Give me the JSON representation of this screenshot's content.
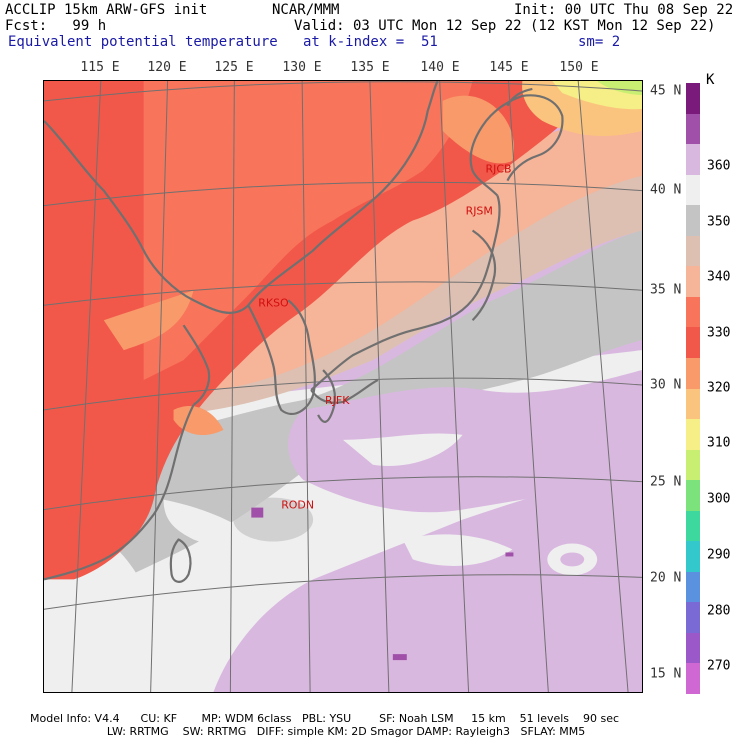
{
  "header": {
    "line1_left": "ACCLIP 15km ARW-GFS init",
    "line1_center": "NCAR/MMM",
    "line1_right": "Init: 00 UTC Thu 08 Sep 22",
    "line2_left": "Fcst:   99 h",
    "line2_right": "Valid: 03 UTC Mon 12 Sep 22 (12 KST Mon 12 Sep 22)",
    "line3_left": "Equivalent potential temperature",
    "line3_center": "at k-index =  51",
    "line3_right": "sm= 2"
  },
  "map": {
    "longitude_labels": [
      "115 E",
      "120 E",
      "125 E",
      "130 E",
      "135 E",
      "140 E",
      "145 E",
      "150 E"
    ],
    "latitude_labels": [
      "45 N",
      "40 N",
      "35 N",
      "30 N",
      "25 N",
      "20 N",
      "15 N"
    ],
    "stations": [
      "RJCB",
      "RJSM",
      "RKSO",
      "RJFK",
      "RODN"
    ]
  },
  "colorbar": {
    "unit": "K",
    "labels": [
      "360",
      "350",
      "340",
      "330",
      "320",
      "310",
      "300",
      "290",
      "280",
      "270"
    ],
    "colors": [
      "#7a1a7a",
      "#a050a8",
      "#d9b8e0",
      "#efefef",
      "#c4c4c4",
      "#ddc0b2",
      "#f6b498",
      "#f8745a",
      "#f2584a",
      "#f89a6a",
      "#fbc47e",
      "#f6ee86",
      "#c8ee72",
      "#7ce27c",
      "#3cd89e",
      "#32c8cc",
      "#5a92e0",
      "#7a6ad6",
      "#9a58c8",
      "#d068d4"
    ]
  },
  "footer": {
    "line1": "Model Info: V4.4      CU: KF       MP: WDM 6class   PBL: YSU        SF: Noah LSM     15 km    51 levels    90 sec",
    "line2": "                      LW: RRTMG    SW: RRTMG   DIFF: simple KM: 2D Smagor DAMP: Rayleigh3   SFLAY: MM5"
  }
}
